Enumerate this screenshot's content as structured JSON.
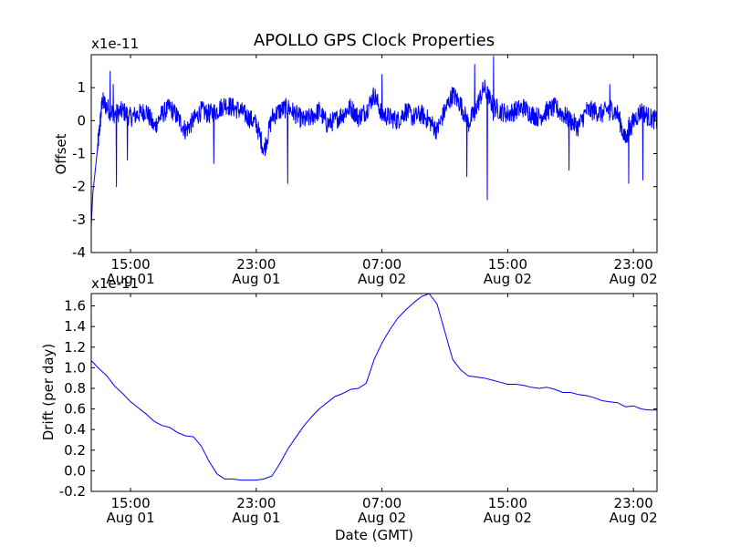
{
  "figure": {
    "title": "APOLLO GPS Clock Properties"
  },
  "chart_data": [
    {
      "type": "line",
      "title": "APOLLO GPS Clock Properties",
      "xlabel": "",
      "ylabel": "Offset",
      "y_multiplier": "x1e-11",
      "xlim_hours": [
        12.5,
        48.5
      ],
      "ylim": [
        -4,
        2
      ],
      "yticks": [
        "-4",
        "-3",
        "-2",
        "-1",
        "0",
        "1"
      ],
      "xticks": [
        {
          "hour": 15,
          "time": "15:00",
          "date": "Aug 01"
        },
        {
          "hour": 23,
          "time": "23:00",
          "date": "Aug 01"
        },
        {
          "hour": 31,
          "time": "07:00",
          "date": "Aug 02"
        },
        {
          "hour": 39,
          "time": "15:00",
          "date": "Aug 02"
        },
        {
          "hour": 47,
          "time": "23:00",
          "date": "Aug 02"
        }
      ],
      "color": "#0000ff",
      "series": [
        {
          "name": "offset",
          "x": [
            12.5,
            12.6,
            12.8,
            13.0,
            13.2,
            13.5,
            14.0,
            14.5,
            15.0,
            15.5,
            16.0,
            16.5,
            17.0,
            17.5,
            18.0,
            18.5,
            19.0,
            19.5,
            20.0,
            20.5,
            21.0,
            21.5,
            22.0,
            22.5,
            23.0,
            23.5,
            24.0,
            24.5,
            25.0,
            25.5,
            26.0,
            26.5,
            27.0,
            27.5,
            28.0,
            28.5,
            29.0,
            29.5,
            30.0,
            30.5,
            31.0,
            31.5,
            32.0,
            32.5,
            33.0,
            33.5,
            34.0,
            34.5,
            35.0,
            35.5,
            36.0,
            36.5,
            37.0,
            37.5,
            38.0,
            38.5,
            39.0,
            39.5,
            40.0,
            40.5,
            41.0,
            41.5,
            42.0,
            42.5,
            43.0,
            43.5,
            44.0,
            44.5,
            45.0,
            45.5,
            46.0,
            46.5,
            47.0,
            47.5,
            48.0,
            48.5
          ],
          "values": [
            -3.2,
            -2.2,
            -1.3,
            -0.4,
            0.6,
            0.4,
            0.2,
            0.3,
            0.1,
            0.2,
            0.3,
            -0.2,
            0.2,
            0.4,
            0.1,
            -0.3,
            0.0,
            0.3,
            0.2,
            0.3,
            0.5,
            0.4,
            0.3,
            0.1,
            -0.1,
            -0.9,
            0.1,
            0.3,
            0.4,
            0.2,
            0.0,
            0.1,
            0.3,
            -0.1,
            0.0,
            0.2,
            0.4,
            0.1,
            0.3,
            0.8,
            0.2,
            0.1,
            0.0,
            0.3,
            0.1,
            0.2,
            0.0,
            -0.3,
            0.3,
            0.8,
            0.5,
            -0.1,
            0.4,
            1.0,
            0.5,
            0.3,
            0.2,
            0.3,
            0.4,
            0.2,
            0.1,
            0.3,
            0.4,
            0.2,
            0.0,
            -0.2,
            0.3,
            0.3,
            0.2,
            0.4,
            0.2,
            -0.6,
            0.0,
            0.3,
            0.1,
            0.0
          ],
          "noise": 0.3,
          "spikes": [
            {
              "hour": 13.7,
              "value": 1.5
            },
            {
              "hour": 13.9,
              "value": 1.1
            },
            {
              "hour": 14.1,
              "value": -2.0
            },
            {
              "hour": 14.8,
              "value": -1.2
            },
            {
              "hour": 20.3,
              "value": -1.3
            },
            {
              "hour": 25.0,
              "value": -1.9
            },
            {
              "hour": 31.0,
              "value": 1.4
            },
            {
              "hour": 36.4,
              "value": -1.7
            },
            {
              "hour": 36.9,
              "value": 1.7
            },
            {
              "hour": 37.7,
              "value": -2.4
            },
            {
              "hour": 38.1,
              "value": 1.95
            },
            {
              "hour": 42.9,
              "value": -1.5
            },
            {
              "hour": 45.5,
              "value": 1.1
            },
            {
              "hour": 46.7,
              "value": -1.9
            },
            {
              "hour": 47.6,
              "value": -1.8
            }
          ]
        }
      ]
    },
    {
      "type": "line",
      "title": "",
      "xlabel": "Date (GMT)",
      "ylabel": "Drift (per day)",
      "y_multiplier": "x1e-11",
      "xlim_hours": [
        12.5,
        48.5
      ],
      "ylim": [
        -0.2,
        1.72
      ],
      "yticks": [
        "-0.2",
        "0.0",
        "0.2",
        "0.4",
        "0.6",
        "0.8",
        "1.0",
        "1.2",
        "1.4",
        "1.6"
      ],
      "xticks": [
        {
          "hour": 15,
          "time": "15:00",
          "date": "Aug 01"
        },
        {
          "hour": 23,
          "time": "23:00",
          "date": "Aug 01"
        },
        {
          "hour": 31,
          "time": "07:00",
          "date": "Aug 02"
        },
        {
          "hour": 39,
          "time": "15:00",
          "date": "Aug 02"
        },
        {
          "hour": 47,
          "time": "23:00",
          "date": "Aug 02"
        }
      ],
      "color": "#0000ff",
      "series": [
        {
          "name": "drift",
          "x": [
            12.5,
            13.0,
            13.5,
            14.0,
            14.5,
            15.0,
            15.5,
            16.0,
            16.5,
            17.0,
            17.5,
            18.0,
            18.5,
            19.0,
            19.5,
            20.0,
            20.5,
            21.0,
            21.5,
            22.0,
            22.5,
            23.0,
            23.5,
            24.0,
            24.5,
            25.0,
            25.5,
            26.0,
            26.5,
            27.0,
            27.5,
            28.0,
            28.5,
            29.0,
            29.5,
            30.0,
            30.5,
            31.0,
            31.5,
            32.0,
            32.5,
            33.0,
            33.5,
            34.0,
            34.5,
            35.0,
            35.5,
            36.0,
            36.5,
            37.0,
            37.5,
            38.0,
            38.5,
            39.0,
            39.5,
            40.0,
            40.5,
            41.0,
            41.5,
            42.0,
            42.5,
            43.0,
            43.5,
            44.0,
            44.5,
            45.0,
            45.5,
            46.0,
            46.5,
            47.0,
            47.5,
            48.0,
            48.5
          ],
          "values": [
            1.07,
            0.99,
            0.92,
            0.82,
            0.75,
            0.67,
            0.61,
            0.55,
            0.48,
            0.44,
            0.42,
            0.37,
            0.34,
            0.33,
            0.24,
            0.09,
            -0.03,
            -0.08,
            -0.08,
            -0.09,
            -0.09,
            -0.09,
            -0.08,
            -0.05,
            0.07,
            0.21,
            0.32,
            0.43,
            0.52,
            0.6,
            0.66,
            0.72,
            0.75,
            0.79,
            0.8,
            0.85,
            1.08,
            1.24,
            1.37,
            1.48,
            1.56,
            1.63,
            1.69,
            1.72,
            1.62,
            1.35,
            1.08,
            0.98,
            0.92,
            0.91,
            0.9,
            0.88,
            0.86,
            0.84,
            0.84,
            0.83,
            0.81,
            0.8,
            0.81,
            0.79,
            0.76,
            0.76,
            0.74,
            0.73,
            0.71,
            0.68,
            0.67,
            0.66,
            0.62,
            0.63,
            0.6,
            0.59,
            0.59
          ]
        }
      ]
    }
  ]
}
